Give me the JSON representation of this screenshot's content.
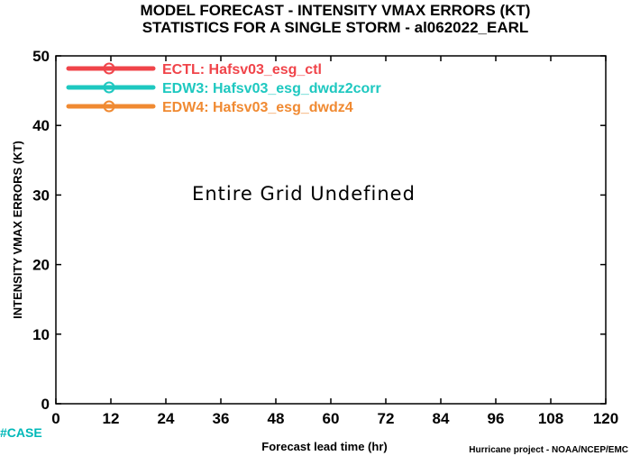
{
  "titles": {
    "line1": "MODEL FORECAST - INTENSITY VMAX ERRORS (KT)",
    "line2": "STATISTICS FOR A SINGLE STORM - al062022_EARL"
  },
  "annotation": "Entire Grid Undefined",
  "case_label": "#CASE",
  "credit": "Hurricane project - NOAA/NCEP/EMC",
  "chart_data": {
    "type": "line",
    "title": "MODEL FORECAST - INTENSITY VMAX ERRORS (KT)",
    "subtitle": "STATISTICS FOR A SINGLE STORM - al062022_EARL",
    "xlabel": "Forecast lead time (hr)",
    "ylabel": "INTENSITY VMAX ERRORS (KT)",
    "xlim": [
      0,
      120
    ],
    "ylim": [
      0,
      50
    ],
    "xticks": [
      0,
      12,
      24,
      36,
      48,
      60,
      72,
      84,
      96,
      108,
      120
    ],
    "yticks": [
      0,
      10,
      20,
      30,
      40,
      50
    ],
    "grid": false,
    "legend_position": "top-left",
    "series": [
      {
        "name": "ECTL: Hafsv03_esg_ctl",
        "color": "#f0444a",
        "values": []
      },
      {
        "name": "EDW3: Hafsv03_esg_dwdz2corr",
        "color": "#1ec8c0",
        "values": []
      },
      {
        "name": "EDW4: Hafsv03_esg_dwdz4",
        "color": "#f08a32",
        "values": []
      }
    ]
  }
}
